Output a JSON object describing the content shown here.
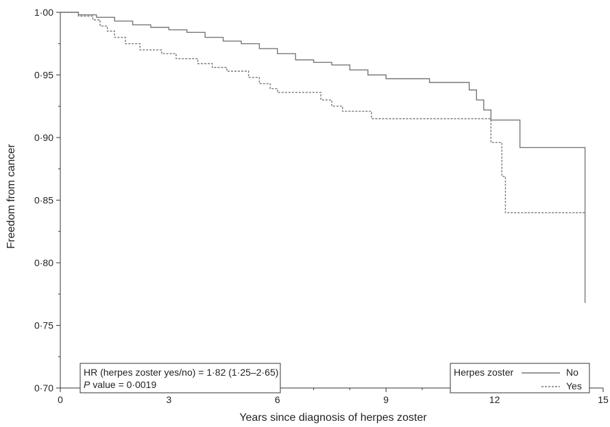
{
  "chart_data": {
    "type": "line",
    "xlabel": "Years since diagnosis of herpes zoster",
    "ylabel": "Freedom from cancer",
    "xlim": [
      0,
      15
    ],
    "ylim": [
      0.7,
      1.0
    ],
    "x_ticks": [
      "0",
      "3",
      "6",
      "9",
      "12",
      "15"
    ],
    "y_ticks": [
      "0·70",
      "0·75",
      "0·80",
      "0·85",
      "0·90",
      "0·95",
      "1·00"
    ],
    "grid": false,
    "legend_placement": "bottom-right",
    "legend": {
      "title": "Herpes zoster",
      "labels": [
        "No",
        "Yes"
      ]
    },
    "annotation": {
      "line1": "HR (herpes zoster yes/no) = 1·82 (1·25–2·65)",
      "line2_italic": "P",
      "line2_rest": " value = 0·0019"
    },
    "series": [
      {
        "name": "No",
        "style": "solid",
        "color": "#777777",
        "x": [
          0,
          0.5,
          1,
          1.5,
          2,
          2.5,
          3,
          3.5,
          4,
          4.5,
          5,
          5.5,
          6,
          6.5,
          7,
          7.5,
          8,
          8.5,
          9,
          10.2,
          11.3,
          11.5,
          11.7,
          11.9,
          12.0,
          12.7,
          14.5,
          14.5
        ],
        "y": [
          1.0,
          0.998,
          0.996,
          0.993,
          0.99,
          0.988,
          0.986,
          0.984,
          0.98,
          0.977,
          0.975,
          0.971,
          0.967,
          0.962,
          0.96,
          0.958,
          0.954,
          0.95,
          0.947,
          0.944,
          0.938,
          0.93,
          0.922,
          0.914,
          0.914,
          0.892,
          0.892,
          0.768
        ]
      },
      {
        "name": "Yes",
        "style": "dashed",
        "color": "#777777",
        "x": [
          0,
          0.5,
          0.9,
          1.1,
          1.3,
          1.5,
          1.8,
          2.2,
          2.8,
          3.2,
          3.8,
          4.2,
          4.6,
          5.0,
          5.2,
          5.5,
          5.8,
          6.0,
          6.5,
          7.2,
          7.5,
          7.8,
          8.6,
          10.5,
          11.4,
          11.9,
          12.2,
          12.3,
          14.5
        ],
        "y": [
          1.0,
          0.997,
          0.994,
          0.989,
          0.985,
          0.98,
          0.975,
          0.97,
          0.967,
          0.963,
          0.959,
          0.956,
          0.953,
          0.953,
          0.948,
          0.943,
          0.939,
          0.936,
          0.936,
          0.93,
          0.925,
          0.921,
          0.915,
          0.915,
          0.915,
          0.896,
          0.869,
          0.84,
          0.84
        ]
      }
    ]
  }
}
